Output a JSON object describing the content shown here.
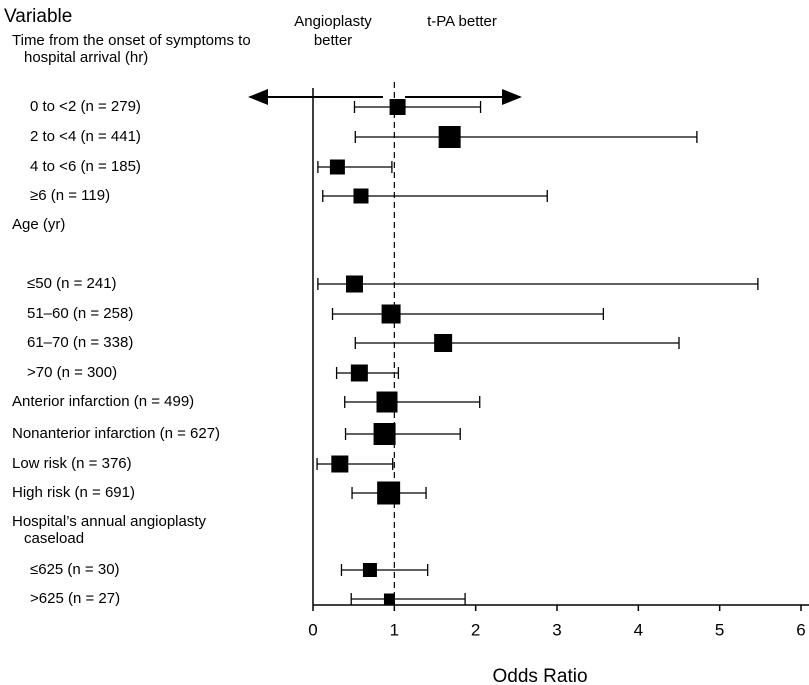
{
  "chart_data": {
    "type": "forest",
    "title": "Variable",
    "xlabel": "Odds Ratio",
    "annotations": [
      "Angioplasty better",
      "t-PA better"
    ],
    "categories": [
      "Time from the onset of symptoms to hospital arrival (hr)",
      "0 to <2 (n = 279)",
      "2 to <4 (n = 441)",
      "4 to <6 (n = 185)",
      "≥6 (n = 119)",
      "Age (yr)",
      "≤50 (n = 241)",
      "51–60 (n = 258)",
      "61–70 (n = 338)",
      ">70 (n = 300)",
      "Anterior infarction (n = 499)",
      "Nonanterior infarction (n = 627)",
      "Low risk (n = 376)",
      "High risk (n = 691)",
      "Hospital’s annual angioplasty caseload",
      "≤625 (n = 30)",
      ">625 (n = 27)"
    ],
    "values": [
      null,
      1.04,
      1.68,
      0.3,
      0.59,
      null,
      0.51,
      0.96,
      1.6,
      0.57,
      0.91,
      0.88,
      0.33,
      0.93,
      null,
      0.7,
      0.94
    ],
    "lower": [
      null,
      0.51,
      0.52,
      0.06,
      0.12,
      null,
      0.06,
      0.24,
      0.52,
      0.29,
      0.39,
      0.4,
      0.05,
      0.48,
      null,
      0.35,
      0.47
    ],
    "upper": [
      null,
      2.06,
      4.72,
      0.97,
      2.88,
      null,
      5.47,
      3.57,
      4.5,
      1.05,
      2.05,
      1.81,
      0.98,
      1.39,
      null,
      1.41,
      1.87
    ],
    "weights": [
      null,
      16,
      22,
      15,
      15,
      null,
      17,
      19,
      18,
      17,
      21,
      22,
      17,
      23,
      null,
      14,
      11
    ],
    "color": "#000000",
    "reference_line": 1,
    "xlim": [
      0,
      6
    ],
    "xticks": [
      0,
      1,
      2,
      3,
      4,
      5,
      6
    ]
  }
}
